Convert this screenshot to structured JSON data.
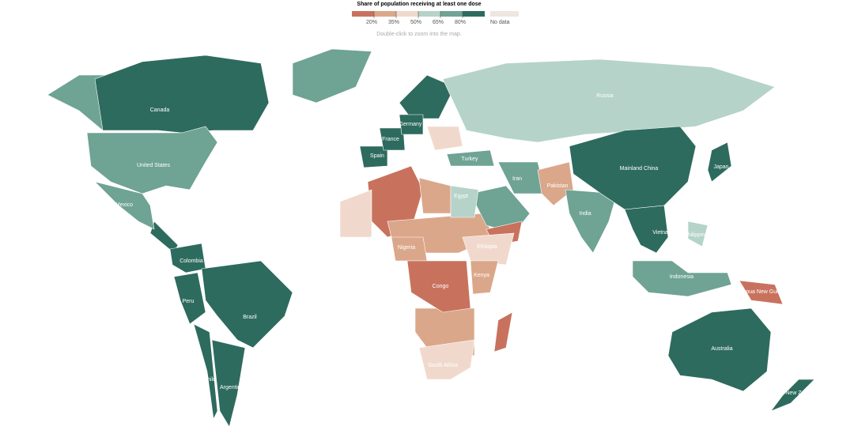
{
  "legend": {
    "title": "Share of population receiving at least one dose",
    "bins": [
      {
        "color": "#c8725e"
      },
      {
        "color": "#dba78a"
      },
      {
        "color": "#f0d9cc"
      },
      {
        "color": "#b5d3c9"
      },
      {
        "color": "#6fa394"
      },
      {
        "color": "#2d6b5e"
      }
    ],
    "ticks": [
      "20%",
      "35%",
      "50%",
      "65%",
      "80%"
    ],
    "no_data": {
      "label": "No data",
      "color": "#ede6e1"
    }
  },
  "hint": "Double-click to zoom into the map.",
  "countries": [
    {
      "label": "Canada",
      "color": "#2d6b5e"
    },
    {
      "label": "United States",
      "color": "#6fa394"
    },
    {
      "label": "Mexico",
      "color": "#6fa394"
    },
    {
      "label": "Colombia",
      "color": "#2d6b5e"
    },
    {
      "label": "Peru",
      "color": "#2d6b5e"
    },
    {
      "label": "Brazil",
      "color": "#2d6b5e"
    },
    {
      "label": "Chile",
      "color": "#2d6b5e"
    },
    {
      "label": "Argentina",
      "color": "#2d6b5e"
    },
    {
      "label": "Spain",
      "color": "#2d6b5e"
    },
    {
      "label": "France",
      "color": "#2d6b5e"
    },
    {
      "label": "Germany",
      "color": "#2d6b5e"
    },
    {
      "label": "Turkey",
      "color": "#6fa394"
    },
    {
      "label": "Egypt",
      "color": "#b5d3c9"
    },
    {
      "label": "Nigeria",
      "color": "#dba78a"
    },
    {
      "label": "Ethiopia",
      "color": "#f0d9cc"
    },
    {
      "label": "Kenya",
      "color": "#dba78a"
    },
    {
      "label": "Congo",
      "color": "#c8725e"
    },
    {
      "label": "South Africa",
      "color": "#f0d9cc"
    },
    {
      "label": "Iran",
      "color": "#6fa394"
    },
    {
      "label": "Pakistan",
      "color": "#dba78a"
    },
    {
      "label": "India",
      "color": "#6fa394"
    },
    {
      "label": "Russia",
      "color": "#b5d3c9"
    },
    {
      "label": "Mainland China",
      "color": "#2d6b5e"
    },
    {
      "label": "Japan",
      "color": "#2d6b5e"
    },
    {
      "label": "Vietnam",
      "color": "#2d6b5e"
    },
    {
      "label": "Philippines",
      "color": "#b5d3c9"
    },
    {
      "label": "Indonesia",
      "color": "#6fa394"
    },
    {
      "label": "Papua New Guinea",
      "color": "#c8725e"
    },
    {
      "label": "Australia",
      "color": "#2d6b5e"
    },
    {
      "label": "New Zealand",
      "color": "#2d6b5e"
    }
  ]
}
